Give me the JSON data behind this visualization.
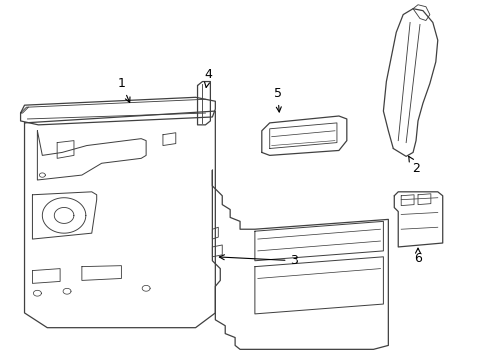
{
  "background_color": "#ffffff",
  "line_color": "#404040",
  "line_width": 0.9,
  "label_fontsize": 9,
  "fig_width": 4.89,
  "fig_height": 3.6,
  "dpi": 100
}
